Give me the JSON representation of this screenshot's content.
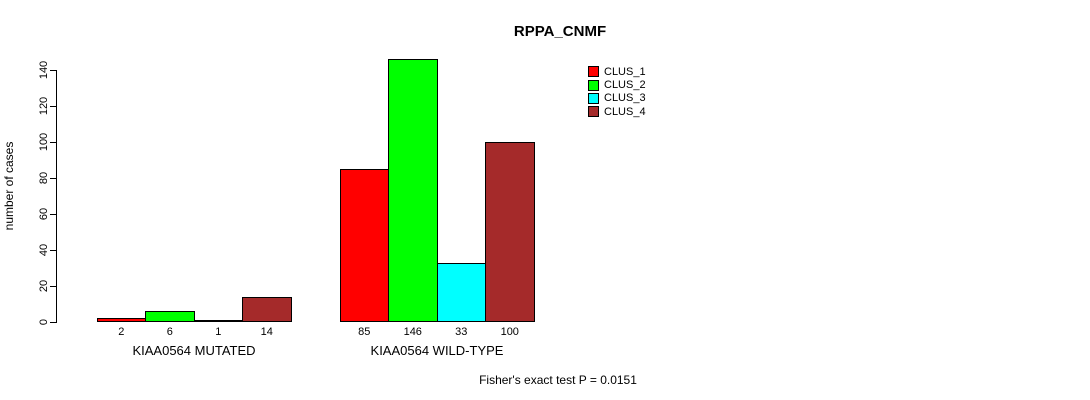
{
  "chart_data": {
    "type": "bar",
    "title": "RPPA_CNMF",
    "ylabel": "number of cases",
    "xlabel": "",
    "groups": [
      "KIAA0564 MUTATED",
      "KIAA0564 WILD-TYPE"
    ],
    "series": [
      {
        "name": "CLUS_1",
        "color": "#FF0000",
        "values": [
          2,
          85
        ]
      },
      {
        "name": "CLUS_2",
        "color": "#00FF00",
        "values": [
          6,
          146
        ]
      },
      {
        "name": "CLUS_3",
        "color": "#00FFFF",
        "values": [
          1,
          33
        ]
      },
      {
        "name": "CLUS_4",
        "color": "#A52A2A",
        "values": [
          14,
          100
        ]
      }
    ],
    "yticks": [
      0,
      20,
      40,
      60,
      80,
      100,
      120,
      140
    ],
    "ylim": [
      0,
      146
    ],
    "bar_value_labels_shown": true,
    "legend_position": "top-right",
    "grid": false,
    "bar_outline_color": "#000000",
    "annotation": "Fisher's exact test P = 0.0151"
  }
}
